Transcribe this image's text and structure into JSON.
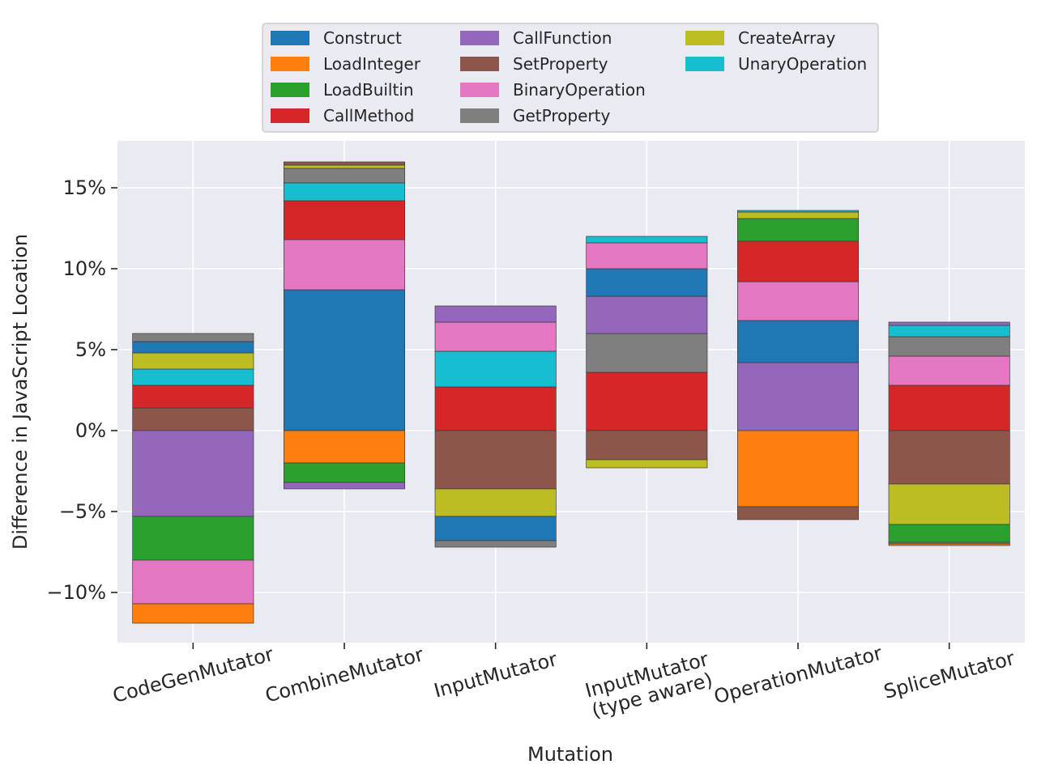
{
  "chart_data": {
    "type": "bar",
    "stacked": true,
    "xlabel": "Mutation",
    "ylabel": "Difference in JavaScript Location",
    "ylim": [
      -13.1,
      17.9
    ],
    "yticks": [
      -10,
      -5,
      0,
      5,
      10,
      15
    ],
    "ytick_labels": [
      "−10%",
      "−5%",
      "0%",
      "5%",
      "10%",
      "15%"
    ],
    "grid": true,
    "legend_position": "top-center",
    "categories": [
      "CodeGenMutator",
      "CombineMutator",
      "InputMutator",
      "InputMutator\n(type aware)",
      "OperationMutator",
      "SpliceMutator"
    ],
    "series": [
      {
        "name": "Construct",
        "color": "#1f77b4"
      },
      {
        "name": "LoadInteger",
        "color": "#ff7f0e"
      },
      {
        "name": "LoadBuiltin",
        "color": "#2ca02c"
      },
      {
        "name": "CallMethod",
        "color": "#d62728"
      },
      {
        "name": "CallFunction",
        "color": "#9467bd"
      },
      {
        "name": "SetProperty",
        "color": "#8c564b"
      },
      {
        "name": "BinaryOperation",
        "color": "#e377c2"
      },
      {
        "name": "GetProperty",
        "color": "#7f7f7f"
      },
      {
        "name": "CreateArray",
        "color": "#bcbd22"
      },
      {
        "name": "UnaryOperation",
        "color": "#17becf"
      }
    ],
    "stacks": [
      {
        "positive": [
          [
            "SetProperty",
            1.4
          ],
          [
            "CallMethod",
            1.4
          ],
          [
            "UnaryOperation",
            1.0
          ],
          [
            "CreateArray",
            1.0
          ],
          [
            "Construct",
            0.7
          ],
          [
            "GetProperty",
            0.5
          ]
        ],
        "negative": [
          [
            "CallFunction",
            -5.3
          ],
          [
            "LoadBuiltin",
            -2.7
          ],
          [
            "BinaryOperation",
            -2.7
          ],
          [
            "LoadInteger",
            -1.2
          ]
        ]
      },
      {
        "positive": [
          [
            "Construct",
            8.7
          ],
          [
            "BinaryOperation",
            3.1
          ],
          [
            "CallMethod",
            2.4
          ],
          [
            "UnaryOperation",
            1.1
          ],
          [
            "GetProperty",
            0.9
          ],
          [
            "CreateArray",
            0.2
          ],
          [
            "SetProperty",
            0.2
          ]
        ],
        "negative": [
          [
            "LoadInteger",
            -2.0
          ],
          [
            "LoadBuiltin",
            -1.2
          ],
          [
            "CallFunction",
            -0.4
          ]
        ]
      },
      {
        "positive": [
          [
            "CallMethod",
            2.7
          ],
          [
            "UnaryOperation",
            2.2
          ],
          [
            "BinaryOperation",
            1.8
          ],
          [
            "CallFunction",
            1.0
          ]
        ],
        "negative": [
          [
            "SetProperty",
            -3.6
          ],
          [
            "CreateArray",
            -1.7
          ],
          [
            "Construct",
            -1.5
          ],
          [
            "GetProperty",
            -0.4
          ]
        ]
      },
      {
        "positive": [
          [
            "CallMethod",
            3.6
          ],
          [
            "GetProperty",
            2.4
          ],
          [
            "CallFunction",
            2.3
          ],
          [
            "Construct",
            1.7
          ],
          [
            "BinaryOperation",
            1.6
          ],
          [
            "UnaryOperation",
            0.4
          ]
        ],
        "negative": [
          [
            "SetProperty",
            -1.8
          ],
          [
            "CreateArray",
            -0.5
          ]
        ]
      },
      {
        "positive": [
          [
            "CallFunction",
            4.2
          ],
          [
            "Construct",
            2.6
          ],
          [
            "BinaryOperation",
            2.4
          ],
          [
            "CallMethod",
            2.5
          ],
          [
            "LoadBuiltin",
            1.4
          ],
          [
            "CreateArray",
            0.4
          ],
          [
            "UnaryOperation",
            0.1
          ]
        ],
        "negative": [
          [
            "LoadInteger",
            -4.7
          ],
          [
            "SetProperty",
            -0.8
          ]
        ]
      },
      {
        "positive": [
          [
            "CallMethod",
            2.8
          ],
          [
            "BinaryOperation",
            1.8
          ],
          [
            "GetProperty",
            1.2
          ],
          [
            "UnaryOperation",
            0.7
          ],
          [
            "CallFunction",
            0.2
          ]
        ],
        "negative": [
          [
            "SetProperty",
            -3.3
          ],
          [
            "CreateArray",
            -2.5
          ],
          [
            "LoadBuiltin",
            -1.1
          ],
          [
            "GetProperty",
            -0.1
          ],
          [
            "LoadInteger",
            -0.1
          ]
        ]
      }
    ]
  }
}
